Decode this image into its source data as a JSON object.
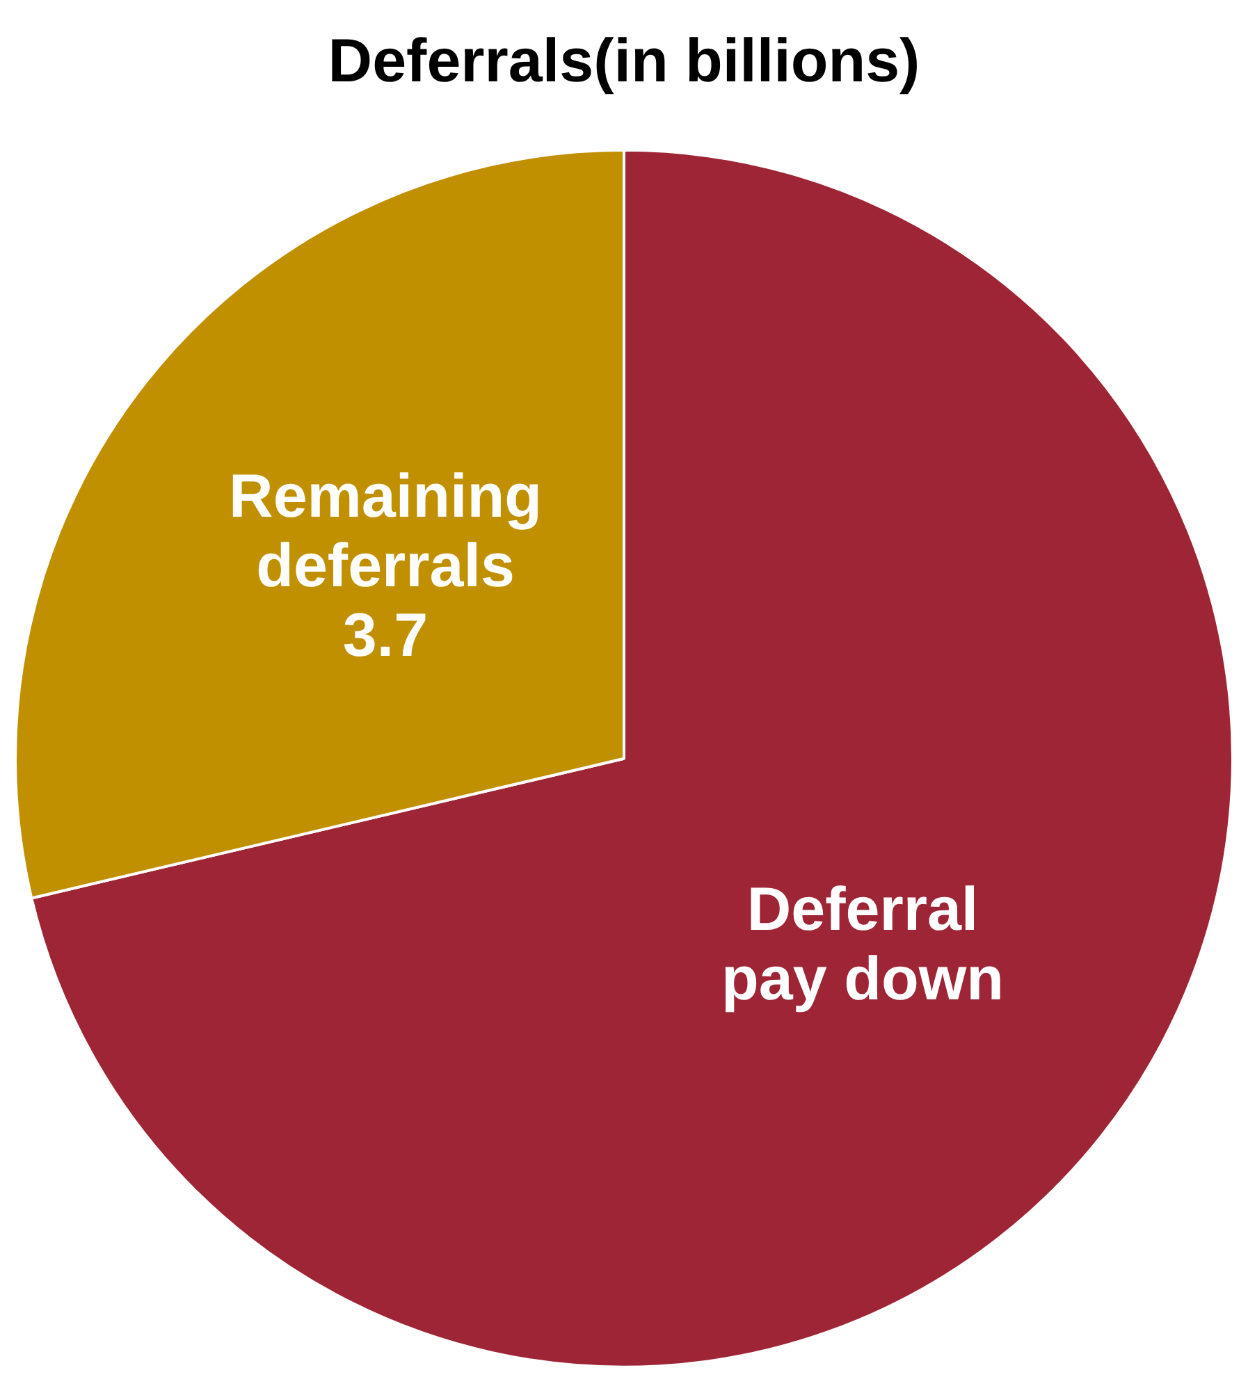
{
  "chart_data": {
    "type": "pie",
    "title": "Deferrals(in billions)",
    "categories": [
      "Deferral pay down",
      "Remaining deferrals"
    ],
    "values": [
      9.2,
      3.7
    ],
    "colors": [
      "#9e2536",
      "#c09000"
    ],
    "value_labels": [
      null,
      "3.7"
    ],
    "legend": false
  }
}
